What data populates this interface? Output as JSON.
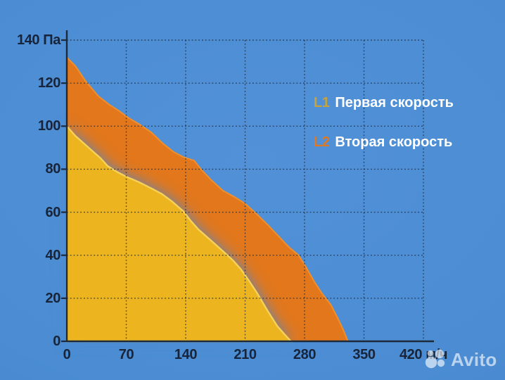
{
  "chart_data": {
    "type": "area",
    "x_unit": "м/ч",
    "y_unit": "Па",
    "x_ticks": [
      0,
      70,
      140,
      210,
      280,
      350,
      420
    ],
    "x_tick_labels": [
      "0",
      "70",
      "140",
      "210",
      "280",
      "350",
      "420 м/ч"
    ],
    "y_ticks": [
      140,
      120,
      100,
      80,
      60,
      40,
      20,
      0
    ],
    "y_tick_labels": [
      "140 Па",
      "120",
      "100",
      "80",
      "60",
      "40",
      "20",
      "0"
    ],
    "xlim": [
      0,
      432
    ],
    "ylim": [
      0,
      145
    ],
    "grid": true,
    "legend_position": "inside-upper-right",
    "series": [
      {
        "id": "L1",
        "name": "Первая скорость",
        "color": "#ecb41f",
        "edge_color": "#f8d158",
        "points": [
          [
            0,
            100
          ],
          [
            10,
            95.5
          ],
          [
            20,
            92
          ],
          [
            30,
            88.5
          ],
          [
            40,
            85
          ],
          [
            48,
            81.5
          ],
          [
            58,
            79
          ],
          [
            70,
            76.5
          ],
          [
            85,
            74
          ],
          [
            100,
            71
          ],
          [
            112,
            68.5
          ],
          [
            124,
            65
          ],
          [
            137,
            60.5
          ],
          [
            146,
            56
          ],
          [
            155,
            52
          ],
          [
            165,
            48.5
          ],
          [
            175,
            45
          ],
          [
            185,
            41.5
          ],
          [
            196,
            37.5
          ],
          [
            205,
            33.5
          ],
          [
            214,
            28.5
          ],
          [
            224,
            22.5
          ],
          [
            236,
            14.5
          ],
          [
            248,
            7
          ],
          [
            257,
            3
          ],
          [
            264,
            0
          ]
        ]
      },
      {
        "id": "L2",
        "name": "Вторая скорость",
        "color": "#e2771c",
        "edge_color": "#ef8f2e",
        "points": [
          [
            0,
            132
          ],
          [
            10,
            128
          ],
          [
            22,
            121
          ],
          [
            37,
            114
          ],
          [
            50,
            110
          ],
          [
            62,
            107
          ],
          [
            72,
            104
          ],
          [
            85,
            101
          ],
          [
            100,
            97
          ],
          [
            113,
            92
          ],
          [
            126,
            88
          ],
          [
            138,
            85.5
          ],
          [
            150,
            84
          ],
          [
            158,
            80
          ],
          [
            170,
            75
          ],
          [
            184,
            70
          ],
          [
            198,
            67
          ],
          [
            210,
            64
          ],
          [
            224,
            59
          ],
          [
            237,
            54
          ],
          [
            249,
            49
          ],
          [
            261,
            44
          ],
          [
            273,
            40
          ],
          [
            281,
            35
          ],
          [
            291,
            28
          ],
          [
            301,
            22
          ],
          [
            311,
            17
          ],
          [
            320,
            10
          ],
          [
            326,
            5
          ],
          [
            331,
            0
          ]
        ]
      }
    ]
  },
  "legend": {
    "items": [
      {
        "tag": "L1",
        "label": "Первая скорость",
        "tag_color": "#c6a23d"
      },
      {
        "tag": "L2",
        "label": "Вторая скорость",
        "tag_color": "#e2771c"
      }
    ]
  },
  "watermark": {
    "text": "Avito"
  },
  "colors": {
    "background_center": "#5291d7",
    "background_edge": "#4181c7",
    "grid": "#1e2d40",
    "axis": "#1c2a3c",
    "tick_text": "#17243a",
    "legend_text": "#ffffff",
    "separator_blur": "#4a8ad1",
    "watermark": "rgba(255,255,255,0.62)"
  }
}
